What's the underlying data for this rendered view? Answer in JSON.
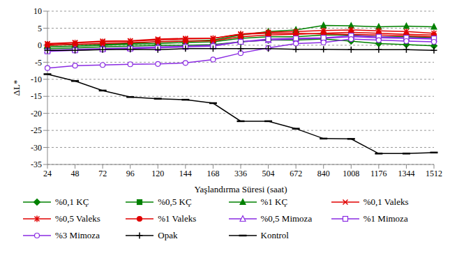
{
  "chart_data": {
    "type": "line",
    "x_label": "Yaşlandırma Süresi (saat)",
    "y_label": "ΔL*",
    "categories": [
      "24",
      "48",
      "72",
      "96",
      "120",
      "144",
      "168",
      "336",
      "504",
      "672",
      "840",
      "1008",
      "1176",
      "1344",
      "1512"
    ],
    "ylim": [
      -35,
      10
    ],
    "yticks": [
      -35,
      -30,
      -25,
      -20,
      -15,
      -10,
      -5,
      0,
      5,
      10
    ],
    "grid": true,
    "legend": "bottom",
    "series": [
      {
        "name": "%0,1 KÇ",
        "color": "#008000",
        "marker": "diamond",
        "values": [
          -1,
          -0.8,
          -0.5,
          -0.3,
          0,
          0,
          0.2,
          1,
          1.5,
          1.5,
          1.8,
          1.2,
          0.5,
          0.2,
          -0.2
        ]
      },
      {
        "name": "%0,5 KÇ",
        "color": "#008000",
        "marker": "square",
        "values": [
          -0.5,
          -0.3,
          0,
          0.3,
          0.5,
          0.8,
          1,
          2,
          2.5,
          2.5,
          3,
          3,
          2.5,
          2.5,
          2.3
        ]
      },
      {
        "name": "%1 KÇ",
        "color": "#008000",
        "marker": "triangle",
        "values": [
          0,
          0.2,
          0.3,
          0.5,
          1,
          1.2,
          1.5,
          3,
          4,
          4.5,
          5.8,
          5.7,
          5.4,
          5.6,
          5.4
        ]
      },
      {
        "name": "%0,1 Valeks",
        "color": "#e00000",
        "marker": "x",
        "values": [
          0.5,
          0.8,
          1.2,
          1.3,
          1.8,
          2,
          2,
          3.2,
          3.5,
          3.5,
          3.3,
          3.2,
          3,
          2.8,
          2.5
        ]
      },
      {
        "name": "%0,5 Valeks",
        "color": "#e00000",
        "marker": "star",
        "values": [
          0.3,
          0.7,
          1,
          1.2,
          1.5,
          1.8,
          2,
          3.3,
          3.8,
          4,
          4.3,
          4.5,
          4.2,
          4,
          3.5
        ]
      },
      {
        "name": "%1 Valeks",
        "color": "#e00000",
        "marker": "circle",
        "values": [
          0,
          0.3,
          0.5,
          0.8,
          1,
          1.2,
          1.3,
          2.5,
          3,
          3.2,
          3.5,
          3.8,
          3.5,
          3.2,
          3
        ]
      },
      {
        "name": "%0,5 Mimoza",
        "color": "#8a2be2",
        "marker": "triangle-open",
        "values": [
          -1.5,
          -1.2,
          -1,
          -0.8,
          -0.5,
          -0.3,
          0,
          1,
          1.5,
          1.8,
          2,
          2.5,
          2.2,
          2,
          1.8
        ]
      },
      {
        "name": "%1 Mimoza",
        "color": "#8a2be2",
        "marker": "square-open",
        "values": [
          -1.8,
          -1.5,
          -1.2,
          -1,
          -0.8,
          -0.5,
          -0.3,
          1,
          1.8,
          2,
          2.2,
          2.8,
          2.5,
          2.2,
          2
        ]
      },
      {
        "name": "%3 Mimoza",
        "color": "#8a2be2",
        "marker": "circle-open",
        "values": [
          -6.7,
          -6,
          -5.8,
          -5.6,
          -5.5,
          -5.2,
          -4.2,
          -2.3,
          -0.8,
          0.5,
          0.8,
          1.8,
          1.5,
          1.2,
          1
        ]
      },
      {
        "name": "Opak",
        "color": "#000000",
        "marker": "plus",
        "values": [
          -1.5,
          -1.5,
          -1.3,
          -1.2,
          -1.3,
          -1,
          -1,
          -1,
          -1,
          -1.2,
          -1.2,
          -1.3,
          -1.3,
          -1.3,
          -1.5
        ]
      },
      {
        "name": "Kontrol",
        "color": "#000000",
        "marker": "dash",
        "values": [
          -8.5,
          -10.5,
          -13.3,
          -15.2,
          -15.7,
          -16,
          -17,
          -22.3,
          -22.3,
          -24.5,
          -27.4,
          -27.5,
          -31.8,
          -31.8,
          -31.5
        ]
      }
    ]
  }
}
